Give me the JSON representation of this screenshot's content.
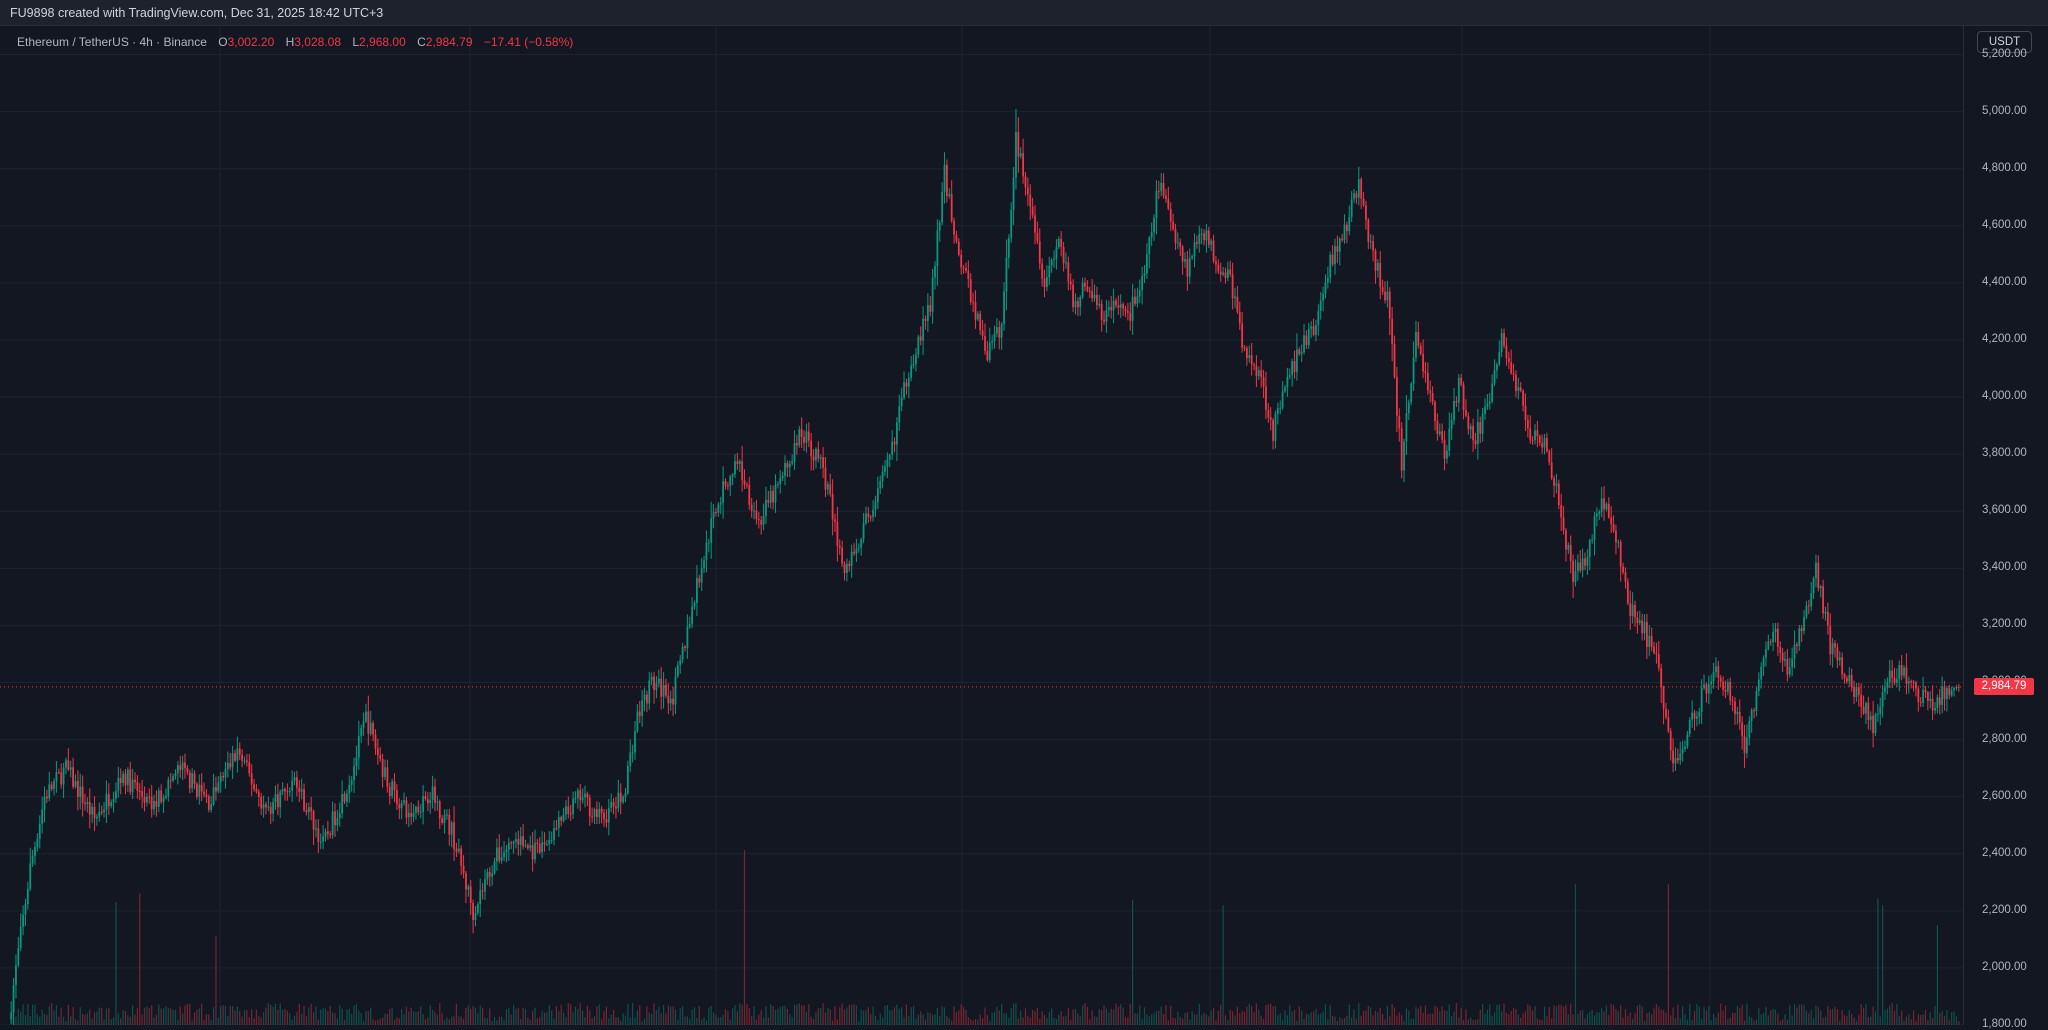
{
  "header": {
    "caption": "FU9898 created with TradingView.com, Dec 31, 2025 18:42 UTC+3"
  },
  "legend": {
    "symbol": "Ethereum / TetherUS · 4h · Binance",
    "open_label": "O",
    "open": "3,002.20",
    "high_label": "H",
    "high": "3,028.08",
    "low_label": "L",
    "low": "2,968.00",
    "close_label": "C",
    "close": "2,984.79",
    "change": "−17.41 (−0.58%)"
  },
  "price_axis": {
    "currency": "USDT",
    "last_price": "2,984.79"
  },
  "colors": {
    "background": "#131722",
    "up": "#089981",
    "down": "#f23645",
    "grid": "#1f2330",
    "price_line": "#f23645"
  },
  "chart_data": {
    "type": "candlestick",
    "timeframe": "4h",
    "ylim": [
      1800,
      5300
    ],
    "y_ticks": [
      1800,
      2000,
      2200,
      2400,
      2600,
      2800,
      3000,
      3200,
      3400,
      3600,
      3800,
      4000,
      4200,
      4400,
      4600,
      4800,
      5000,
      5200
    ],
    "y_tick_labels": [
      "1,800.00",
      "2,000.00",
      "2,200.00",
      "2,400.00",
      "2,600.00",
      "2,800.00",
      "3,000.00",
      "3,200.00",
      "3,400.00",
      "3,600.00",
      "3,800.00",
      "4,000.00",
      "4,200.00",
      "4,400.00",
      "4,600.00",
      "4,800.00",
      "5,000.00",
      "5,200.00"
    ],
    "last_price": 2984.79,
    "price_path": [
      [
        0,
        1820
      ],
      [
        3,
        2350
      ],
      [
        5,
        2600
      ],
      [
        8,
        2700
      ],
      [
        12,
        2520
      ],
      [
        16,
        2680
      ],
      [
        20,
        2560
      ],
      [
        24,
        2700
      ],
      [
        28,
        2580
      ],
      [
        32,
        2760
      ],
      [
        36,
        2550
      ],
      [
        40,
        2660
      ],
      [
        44,
        2430
      ],
      [
        48,
        2680
      ],
      [
        50,
        2880
      ],
      [
        53,
        2650
      ],
      [
        56,
        2530
      ],
      [
        59,
        2620
      ],
      [
        62,
        2480
      ],
      [
        65,
        2200
      ],
      [
        68,
        2380
      ],
      [
        71,
        2450
      ],
      [
        74,
        2400
      ],
      [
        77,
        2500
      ],
      [
        80,
        2600
      ],
      [
        83,
        2520
      ],
      [
        86,
        2600
      ],
      [
        88,
        2880
      ],
      [
        90,
        3000
      ],
      [
        93,
        2950
      ],
      [
        96,
        3300
      ],
      [
        99,
        3620
      ],
      [
        102,
        3780
      ],
      [
        105,
        3560
      ],
      [
        108,
        3700
      ],
      [
        111,
        3880
      ],
      [
        114,
        3750
      ],
      [
        117,
        3380
      ],
      [
        120,
        3560
      ],
      [
        123,
        3750
      ],
      [
        126,
        4100
      ],
      [
        129,
        4320
      ],
      [
        131,
        4780
      ],
      [
        133,
        4500
      ],
      [
        135,
        4330
      ],
      [
        137,
        4150
      ],
      [
        139,
        4250
      ],
      [
        141,
        4900
      ],
      [
        143,
        4700
      ],
      [
        145,
        4400
      ],
      [
        147,
        4560
      ],
      [
        149,
        4320
      ],
      [
        151,
        4400
      ],
      [
        153,
        4280
      ],
      [
        155,
        4320
      ],
      [
        157,
        4300
      ],
      [
        159,
        4420
      ],
      [
        161,
        4750
      ],
      [
        163,
        4600
      ],
      [
        165,
        4450
      ],
      [
        167,
        4600
      ],
      [
        169,
        4480
      ],
      [
        171,
        4420
      ],
      [
        173,
        4150
      ],
      [
        175,
        4100
      ],
      [
        177,
        3880
      ],
      [
        179,
        4050
      ],
      [
        181,
        4180
      ],
      [
        183,
        4250
      ],
      [
        185,
        4480
      ],
      [
        187,
        4580
      ],
      [
        189,
        4750
      ],
      [
        191,
        4480
      ],
      [
        193,
        4350
      ],
      [
        195,
        3760
      ],
      [
        197,
        4220
      ],
      [
        199,
        4000
      ],
      [
        201,
        3800
      ],
      [
        203,
        4050
      ],
      [
        205,
        3850
      ],
      [
        207,
        3950
      ],
      [
        209,
        4200
      ],
      [
        211,
        4050
      ],
      [
        213,
        3880
      ],
      [
        215,
        3850
      ],
      [
        217,
        3650
      ],
      [
        219,
        3350
      ],
      [
        221,
        3460
      ],
      [
        223,
        3650
      ],
      [
        225,
        3500
      ],
      [
        227,
        3250
      ],
      [
        229,
        3180
      ],
      [
        231,
        3050
      ],
      [
        233,
        2700
      ],
      [
        235,
        2830
      ],
      [
        237,
        2950
      ],
      [
        239,
        3050
      ],
      [
        241,
        2960
      ],
      [
        243,
        2780
      ],
      [
        245,
        3000
      ],
      [
        247,
        3200
      ],
      [
        249,
        3020
      ],
      [
        251,
        3200
      ],
      [
        253,
        3400
      ],
      [
        255,
        3120
      ],
      [
        257,
        3050
      ],
      [
        259,
        2940
      ],
      [
        261,
        2850
      ],
      [
        263,
        3000
      ],
      [
        265,
        3040
      ],
      [
        267,
        2960
      ],
      [
        269,
        2930
      ],
      [
        271,
        2960
      ],
      [
        273,
        2984.79
      ]
    ]
  }
}
